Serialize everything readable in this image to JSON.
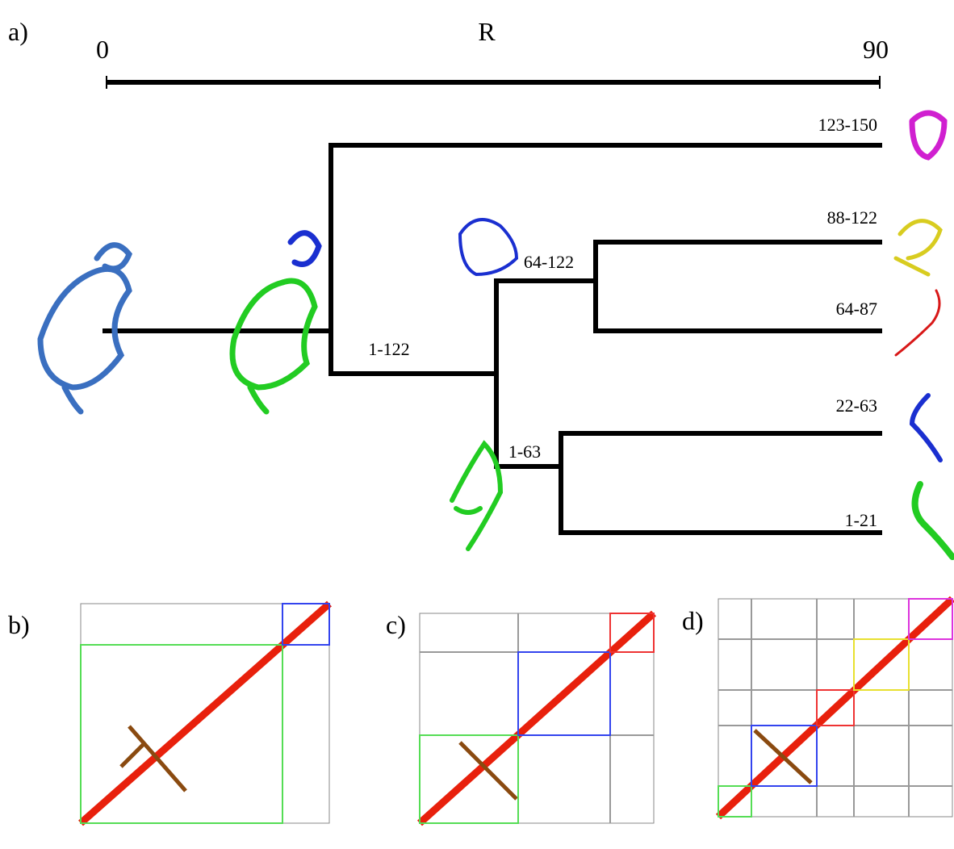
{
  "panels": {
    "a": "a)",
    "b": "b)",
    "c": "c)",
    "d": "d)"
  },
  "scale": {
    "title": "R",
    "start": "0",
    "end": "90"
  },
  "leaves": [
    "123-150",
    "88-122",
    "64-87",
    "22-63",
    "1-21"
  ],
  "internal_nodes": [
    "1-122",
    "64-122",
    "1-63"
  ]
}
